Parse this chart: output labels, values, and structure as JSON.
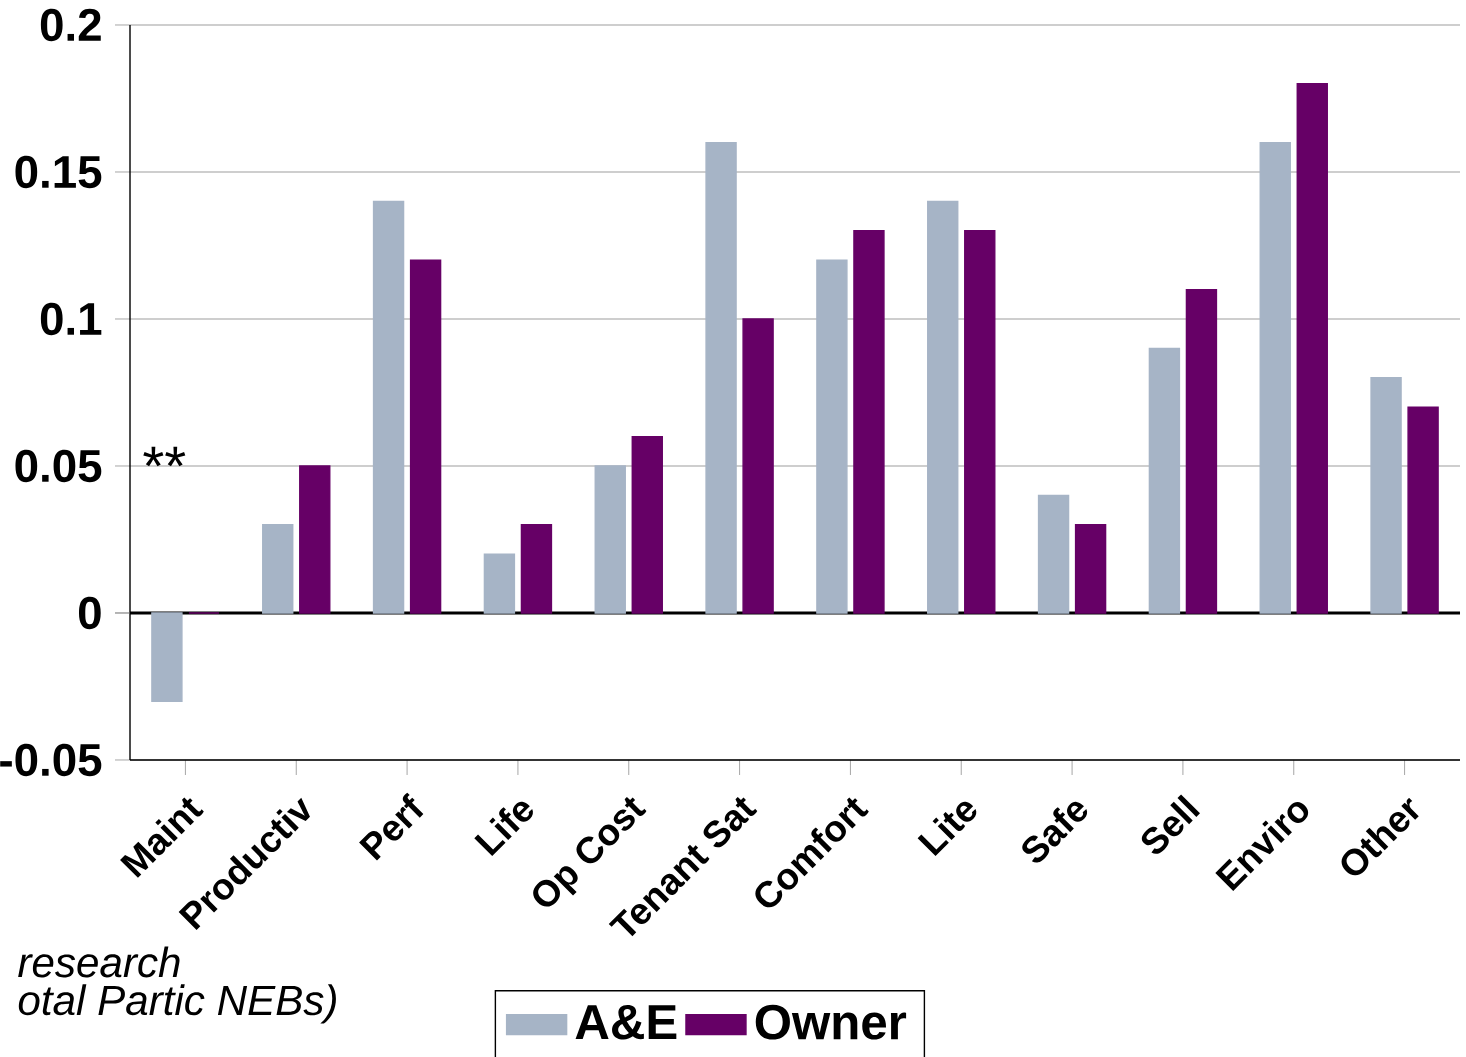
{
  "chart_data": {
    "type": "bar",
    "categories": [
      "Maint",
      "Productiv",
      "Perf",
      "Life",
      "Op Cost",
      "Tenant Sat",
      "Comfort",
      "Lite",
      "Safe",
      "Sell",
      "Enviro",
      "Other"
    ],
    "series": [
      {
        "name": "A&E",
        "color": "#a6b4c6",
        "values": [
          -0.03,
          0.03,
          0.14,
          0.02,
          0.05,
          0.16,
          0.12,
          0.14,
          0.04,
          0.09,
          0.16,
          0.08
        ]
      },
      {
        "name": "Owner",
        "color": "#660066",
        "values": [
          0,
          0.05,
          0.12,
          0.03,
          0.06,
          0.1,
          0.13,
          0.13,
          0.03,
          0.11,
          0.18,
          0.07
        ]
      }
    ],
    "ylim": [
      -0.05,
      0.2
    ],
    "yticks": [
      -0.05,
      0,
      0.05,
      0.1,
      0.15,
      0.2
    ],
    "grid": "y",
    "legend": "bottom",
    "annotations": [
      "**",
      "research",
      "otal Partic NEBs)"
    ]
  }
}
